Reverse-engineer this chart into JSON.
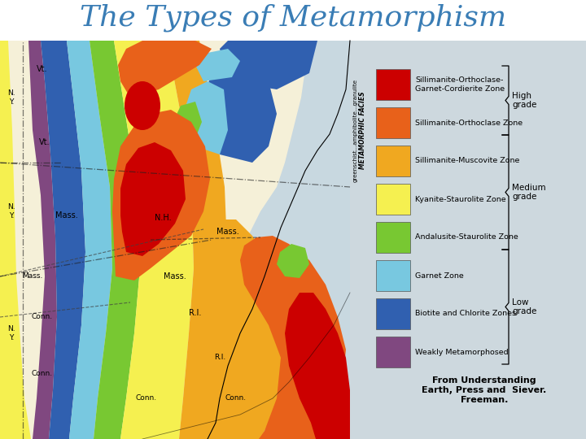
{
  "title": "The Types of Metamorphism",
  "title_color": "#3a7db5",
  "title_fontsize": 26,
  "bg_color": "#cdd8de",
  "legend_items": [
    {
      "color": "#cc0000",
      "label": "Sillimanite-Orthoclase-\nGarnet-Cordierite Zone"
    },
    {
      "color": "#e8611a",
      "label": "Sillimanite-Orthoclase Zone"
    },
    {
      "color": "#f0a820",
      "label": "Sillimanite-Muscovite Zone"
    },
    {
      "color": "#f5f050",
      "label": "Kyanite-Staurolite Zone"
    },
    {
      "color": "#78c832",
      "label": "Andalusite-Staurolite Zone"
    },
    {
      "color": "#78c8e0",
      "label": "Garnet Zone"
    },
    {
      "color": "#3060b0",
      "label": "Biotite and Chlorite Zones"
    },
    {
      "color": "#804880",
      "label": "Weakly Metamorphosed"
    }
  ],
  "source_text": "From Understanding\nEarth, Press and  Siever.\nFreeman.",
  "vertical_label": "greenschist...amphibolite...granulite",
  "vertical_label2": "METAMORPHIC FACIES",
  "map_bg": "#f5f0d8",
  "ocean_color": "#c8d8e0",
  "state_line_color": "#404040"
}
